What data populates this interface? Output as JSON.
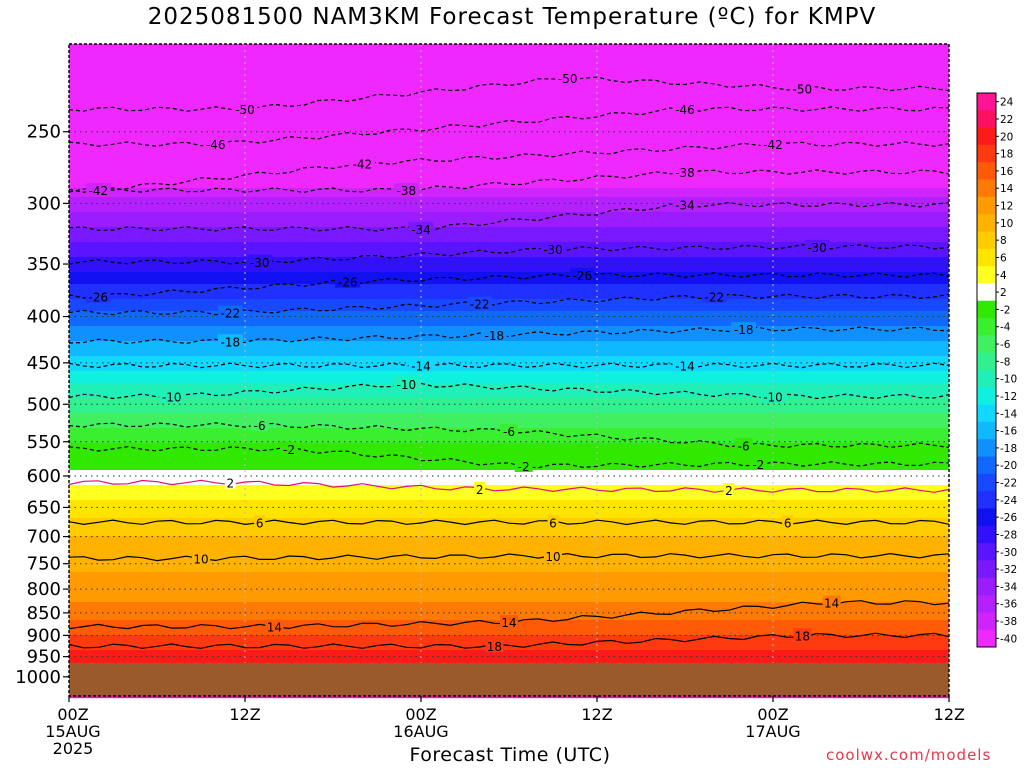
{
  "title": "2025081500 NAM3KM Forecast Temperature (ºC) for KMPV",
  "credit": "coolwx.com/models",
  "colors": {
    "ground": "#9b5a2c",
    "freezing_line": "#e0107a",
    "contour": "#000000"
  },
  "chart_data": {
    "type": "heatmap",
    "title": "2025081500 NAM3KM Forecast Temperature (ºC) for KMPV",
    "xlabel": "Forecast Time (UTC)",
    "ylabel": "",
    "x_ticks": [
      {
        "hour": 0,
        "lines": [
          "00Z",
          "15AUG",
          "2025"
        ]
      },
      {
        "hour": 12,
        "lines": [
          "12Z"
        ]
      },
      {
        "hour": 24,
        "lines": [
          "00Z",
          "16AUG"
        ]
      },
      {
        "hour": 36,
        "lines": [
          "12Z"
        ]
      },
      {
        "hour": 48,
        "lines": [
          "00Z",
          "17AUG"
        ]
      },
      {
        "hour": 60,
        "lines": [
          "12Z"
        ]
      }
    ],
    "xlim": [
      0,
      60
    ],
    "y_axis": "pressure (log)",
    "y_ticks": [
      250,
      300,
      350,
      400,
      450,
      500,
      550,
      600,
      650,
      700,
      750,
      800,
      850,
      900,
      950,
      1000
    ],
    "ylim": [
      1050,
      200
    ],
    "surface_pressure": 965,
    "colorbar": {
      "labels": [
        24,
        22,
        20,
        18,
        16,
        14,
        12,
        10,
        8,
        6,
        4,
        2,
        -2,
        -4,
        -6,
        -8,
        -10,
        -12,
        -14,
        -16,
        -18,
        -20,
        -22,
        -24,
        -26,
        -28,
        -30,
        -32,
        -34,
        -36,
        -38,
        -40
      ],
      "colors": [
        "#ff1494",
        "#ff1060",
        "#ff1a1a",
        "#ff3a10",
        "#ff5a08",
        "#ff7a05",
        "#ff9a00",
        "#ffb200",
        "#ffcc00",
        "#ffe400",
        "#ffff20",
        "#ffffff",
        "#30e800",
        "#3aee30",
        "#40f060",
        "#30f090",
        "#20f0b8",
        "#10f0e0",
        "#10d8ff",
        "#10b8ff",
        "#1090ff",
        "#1068ff",
        "#1848ff",
        "#2030ff",
        "#1010f0",
        "#3010ff",
        "#5a14ff",
        "#7a18ff",
        "#9a1cff",
        "#b420ff",
        "#d024ff",
        "#ee28ff"
      ]
    },
    "profile": [
      {
        "p": 200,
        "t": -57
      },
      {
        "p": 250,
        "t": -48
      },
      {
        "p": 300,
        "t": -36
      },
      {
        "p": 350,
        "t": -28
      },
      {
        "p": 400,
        "t": -20
      },
      {
        "p": 450,
        "t": -14
      },
      {
        "p": 500,
        "t": -8
      },
      {
        "p": 550,
        "t": -3
      },
      {
        "p": 600,
        "t": 2
      },
      {
        "p": 650,
        "t": 6
      },
      {
        "p": 700,
        "t": 9
      },
      {
        "p": 750,
        "t": 10.5
      },
      {
        "p": 800,
        "t": 12
      },
      {
        "p": 850,
        "t": 14
      },
      {
        "p": 900,
        "t": 17
      },
      {
        "p": 950,
        "t": 20
      },
      {
        "p": 1050,
        "t": 24
      }
    ],
    "contour_labels": [
      {
        "text": "-50",
        "hour": 34,
        "p": 218
      },
      {
        "text": "-50",
        "hour": 12,
        "p": 236
      },
      {
        "text": "-50",
        "hour": 50,
        "p": 224
      },
      {
        "text": "-46",
        "hour": 10,
        "p": 258
      },
      {
        "text": "-46",
        "hour": 42,
        "p": 236
      },
      {
        "text": "-42",
        "hour": 2,
        "p": 290
      },
      {
        "text": "-42",
        "hour": 20,
        "p": 271
      },
      {
        "text": "-42",
        "hour": 48,
        "p": 258
      },
      {
        "text": "-38",
        "hour": 23,
        "p": 290
      },
      {
        "text": "-38",
        "hour": 42,
        "p": 277
      },
      {
        "text": "-34",
        "hour": 24,
        "p": 320
      },
      {
        "text": "-34",
        "hour": 42,
        "p": 301
      },
      {
        "text": "-30",
        "hour": 13,
        "p": 348
      },
      {
        "text": "-30",
        "hour": 33,
        "p": 337
      },
      {
        "text": "-30",
        "hour": 51,
        "p": 335
      },
      {
        "text": "-26",
        "hour": 2,
        "p": 380
      },
      {
        "text": "-26",
        "hour": 19,
        "p": 366
      },
      {
        "text": "-26",
        "hour": 35,
        "p": 360
      },
      {
        "text": "-22",
        "hour": 11,
        "p": 396
      },
      {
        "text": "-22",
        "hour": 28,
        "p": 387
      },
      {
        "text": "-22",
        "hour": 44,
        "p": 380
      },
      {
        "text": "-18",
        "hour": 11,
        "p": 426
      },
      {
        "text": "-18",
        "hour": 29,
        "p": 419
      },
      {
        "text": "-18",
        "hour": 46,
        "p": 413
      },
      {
        "text": "-14",
        "hour": 24,
        "p": 453
      },
      {
        "text": "-14",
        "hour": 42,
        "p": 453
      },
      {
        "text": "-10",
        "hour": 7,
        "p": 490
      },
      {
        "text": "-10",
        "hour": 23,
        "p": 475
      },
      {
        "text": "-10",
        "hour": 48,
        "p": 490
      },
      {
        "text": "-6",
        "hour": 13,
        "p": 527
      },
      {
        "text": "-6",
        "hour": 30,
        "p": 535
      },
      {
        "text": "-6",
        "hour": 46,
        "p": 555
      },
      {
        "text": "-2",
        "hour": 15,
        "p": 560
      },
      {
        "text": "-2",
        "hour": 31,
        "p": 585
      },
      {
        "text": "-2",
        "hour": 47,
        "p": 582
      },
      {
        "text": "2",
        "hour": 11,
        "p": 610
      },
      {
        "text": "2",
        "hour": 28,
        "p": 620
      },
      {
        "text": "2",
        "hour": 45,
        "p": 622
      },
      {
        "text": "6",
        "hour": 13,
        "p": 675
      },
      {
        "text": "6",
        "hour": 33,
        "p": 675
      },
      {
        "text": "6",
        "hour": 49,
        "p": 675
      },
      {
        "text": "10",
        "hour": 9,
        "p": 740
      },
      {
        "text": "10",
        "hour": 33,
        "p": 735
      },
      {
        "text": "14",
        "hour": 14,
        "p": 880
      },
      {
        "text": "14",
        "hour": 30,
        "p": 870
      },
      {
        "text": "14",
        "hour": 52,
        "p": 828
      },
      {
        "text": "18",
        "hour": 29,
        "p": 925
      },
      {
        "text": "18",
        "hour": 50,
        "p": 900
      }
    ]
  }
}
